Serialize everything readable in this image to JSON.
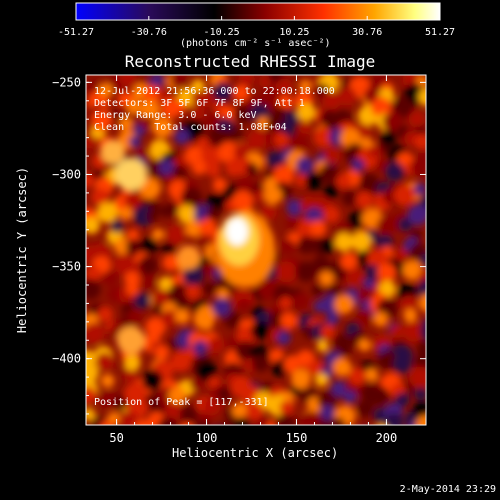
{
  "colorbar": {
    "ticks": [
      "-51.27",
      "-30.76",
      "-10.25",
      "10.25",
      "30.76",
      "51.27"
    ],
    "tick_values": [
      -51.27,
      -30.76,
      -10.25,
      10.25,
      30.76,
      51.27
    ],
    "range": [
      -51.27,
      51.27
    ],
    "units": "(photons cm⁻² s⁻¹ asec⁻²)",
    "colors": [
      "#0000ff",
      "#2a0a5a",
      "#000000",
      "#8b0000",
      "#ff3000",
      "#ffa500",
      "#ffff80",
      "#ffffff"
    ]
  },
  "chart_data": {
    "type": "heatmap",
    "title": "Reconstructed RHESSI Image",
    "xlabel": "Heliocentric X (arcsec)",
    "ylabel": "Heliocentric Y (arcsec)",
    "xlim": [
      33,
      222
    ],
    "ylim": [
      -436,
      -246
    ],
    "xticks": [
      50,
      100,
      150,
      200
    ],
    "yticks": [
      -250,
      -300,
      -350,
      -400
    ],
    "xtick_labels": [
      "50",
      "100",
      "150",
      "200"
    ],
    "ytick_labels": [
      "−250",
      "−300",
      "−350",
      "−400"
    ],
    "annotations": [
      "12-Jul-2012 21:56:36.000 to 22:00:18.000",
      "Detectors: 3F 5F 6F 7F 8F 9F, Att 1",
      "Energy Range: 3.0 - 6.0 keV",
      "Clean     Total counts: 1.08E+04"
    ],
    "peak_label": "Position of Peak = [117,-331]",
    "peak": [
      117,
      -331
    ],
    "grid": false
  },
  "footer": {
    "timestamp": "2-May-2014 23:29"
  }
}
